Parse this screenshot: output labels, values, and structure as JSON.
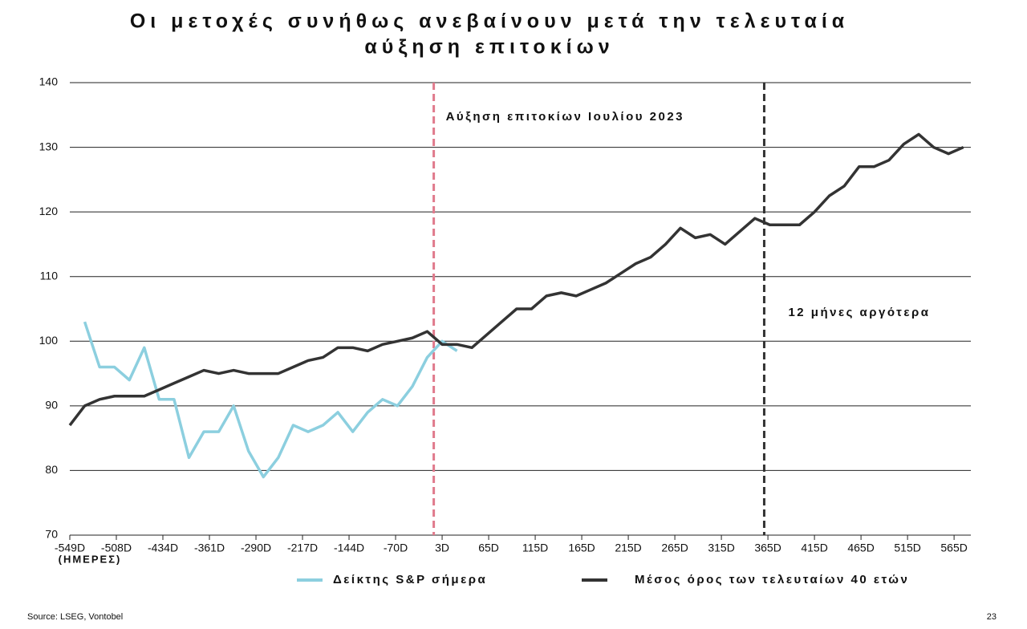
{
  "chart_data": {
    "type": "line",
    "title": [
      "Οι μετοχές συνήθως ανεβαίνουν μετά την τελευταία",
      "αύξηση επιτοκίων"
    ],
    "x_label": "(ΗΜΕΡΕΣ)",
    "x": [
      0,
      16,
      32,
      48,
      64,
      80,
      96,
      112,
      128,
      144,
      160,
      176,
      192,
      208,
      224,
      240,
      256,
      272,
      288,
      304,
      320,
      336,
      352,
      368,
      384,
      400,
      416,
      432,
      448,
      464,
      480,
      496,
      512,
      528,
      544,
      560,
      576,
      592,
      608,
      624,
      640,
      656,
      672,
      688,
      704,
      720,
      736,
      752,
      768,
      784,
      800,
      816,
      832,
      848,
      864,
      880,
      896,
      912,
      928,
      944,
      960
    ],
    "series": [
      {
        "name": "Δείκτης S&P σήμερα",
        "color": "#8ccfdf",
        "values": [
          null,
          103,
          96,
          96,
          94,
          99,
          91,
          91,
          82,
          86,
          86,
          90,
          83,
          79,
          82,
          87,
          86,
          87,
          89,
          86,
          89,
          91,
          90,
          93,
          97.5,
          100,
          98.5,
          null,
          null,
          null,
          null,
          null,
          null,
          null,
          null,
          null,
          null,
          null,
          null,
          null,
          null,
          null,
          null,
          null,
          null,
          null,
          null,
          null,
          null,
          null,
          null,
          null,
          null,
          null,
          null,
          null,
          null,
          null,
          null,
          null,
          null
        ]
      },
      {
        "name": "Μέσος όρος των τελευταίων 40 ετών",
        "color": "#333333",
        "values": [
          87,
          90,
          91,
          91.5,
          91.5,
          91.5,
          92.5,
          93.5,
          94.5,
          95.5,
          95,
          95.5,
          95,
          95,
          95,
          96,
          97,
          97.5,
          99,
          99,
          98.5,
          99.5,
          100,
          100.5,
          101.5,
          99.5,
          99.5,
          99,
          101,
          103,
          105,
          105,
          107,
          107.5,
          107,
          108,
          109,
          110.5,
          112,
          113,
          115,
          117.5,
          116,
          116.5,
          115,
          117,
          119,
          118,
          118,
          118,
          120,
          122.5,
          124,
          127,
          127,
          128,
          130.5,
          132,
          130,
          129,
          130
        ]
      }
    ],
    "xlim": [
      0,
      968
    ],
    "xticks": [
      {
        "value": 0,
        "label": "-549D"
      },
      {
        "value": 50,
        "label": "-508D"
      },
      {
        "value": 100,
        "label": "-434D"
      },
      {
        "value": 150,
        "label": "-361D"
      },
      {
        "value": 200,
        "label": "-290D"
      },
      {
        "value": 250,
        "label": "-217D"
      },
      {
        "value": 300,
        "label": "-144D"
      },
      {
        "value": 350,
        "label": "-70D"
      },
      {
        "value": 400,
        "label": "3D"
      },
      {
        "value": 450,
        "label": "65D"
      },
      {
        "value": 500,
        "label": "115D"
      },
      {
        "value": 550,
        "label": "165D"
      },
      {
        "value": 600,
        "label": "215D"
      },
      {
        "value": 650,
        "label": "265D"
      },
      {
        "value": 700,
        "label": "315D"
      },
      {
        "value": 750,
        "label": "365D"
      },
      {
        "value": 800,
        "label": "415D"
      },
      {
        "value": 850,
        "label": "465D"
      },
      {
        "value": 900,
        "label": "515D"
      },
      {
        "value": 950,
        "label": "565D"
      }
    ],
    "ylim": [
      70,
      140
    ],
    "yticks": [
      70,
      80,
      90,
      100,
      110,
      120,
      130,
      140
    ],
    "grid": true,
    "legend": "bottom",
    "annotations": [
      {
        "text": "Αύξηση επιτοκίων Ιουλίου 2023",
        "x": 391,
        "color": "#e07a8c"
      },
      {
        "text": "12 μήνες αργότερα",
        "x": 746,
        "color": "#333333"
      }
    ],
    "source": "Source: LSEG, Vontobel",
    "page_number": "23"
  }
}
